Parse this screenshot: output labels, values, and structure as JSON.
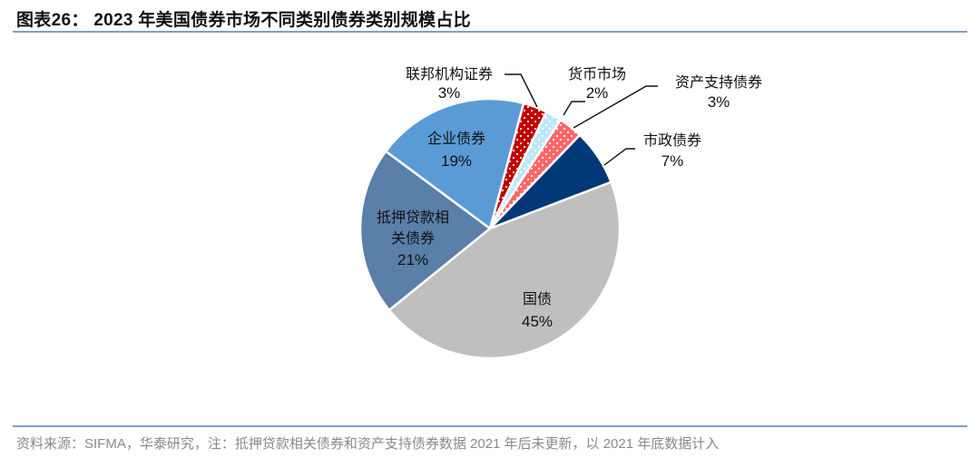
{
  "header": {
    "title": "图表26： 2023 年美国债券市场不同类别债券类别规模占比"
  },
  "footer": {
    "source": "资料来源：SIFMA，华泰研究，注：抵押贷款相关债券和资产支持债券数据 2021 年后未更新，以 2021 年底数据计入"
  },
  "labels": {
    "federal": {
      "name": "联邦机构证券",
      "pct": "3%"
    },
    "money": {
      "name": "货币市场",
      "pct": "2%"
    },
    "abs": {
      "name": "资产支持债券",
      "pct": "3%"
    },
    "muni": {
      "name": "市政债券",
      "pct": "7%"
    },
    "treasury": {
      "name": "国债",
      "pct": "45%"
    },
    "mortgage": {
      "name1": "抵押贷款相",
      "name2": "关债券",
      "pct": "21%"
    },
    "corporate": {
      "name": "企业债券",
      "pct": "19%"
    }
  },
  "chart_data": {
    "type": "pie",
    "title": "2023 年美国债券市场不同类别债券类别规模占比",
    "categories": [
      "联邦机构证券",
      "货币市场",
      "资产支持债券",
      "市政债券",
      "国债",
      "抵押贷款相关债券",
      "企业债券"
    ],
    "values": [
      3,
      2,
      3,
      7,
      45,
      21,
      19
    ],
    "unit": "%",
    "colors": [
      "#c00000",
      "#bde6f8",
      "#ff6666",
      "#003878",
      "#bfbfbf",
      "#5a7fa8",
      "#5b9bd5"
    ],
    "patterns": [
      "dotted",
      "dotted",
      "dotted",
      "solid",
      "solid",
      "solid",
      "solid"
    ],
    "start_angle_deg_clockwise_from_top": 15,
    "legend": "none (data labels with leader lines)"
  }
}
